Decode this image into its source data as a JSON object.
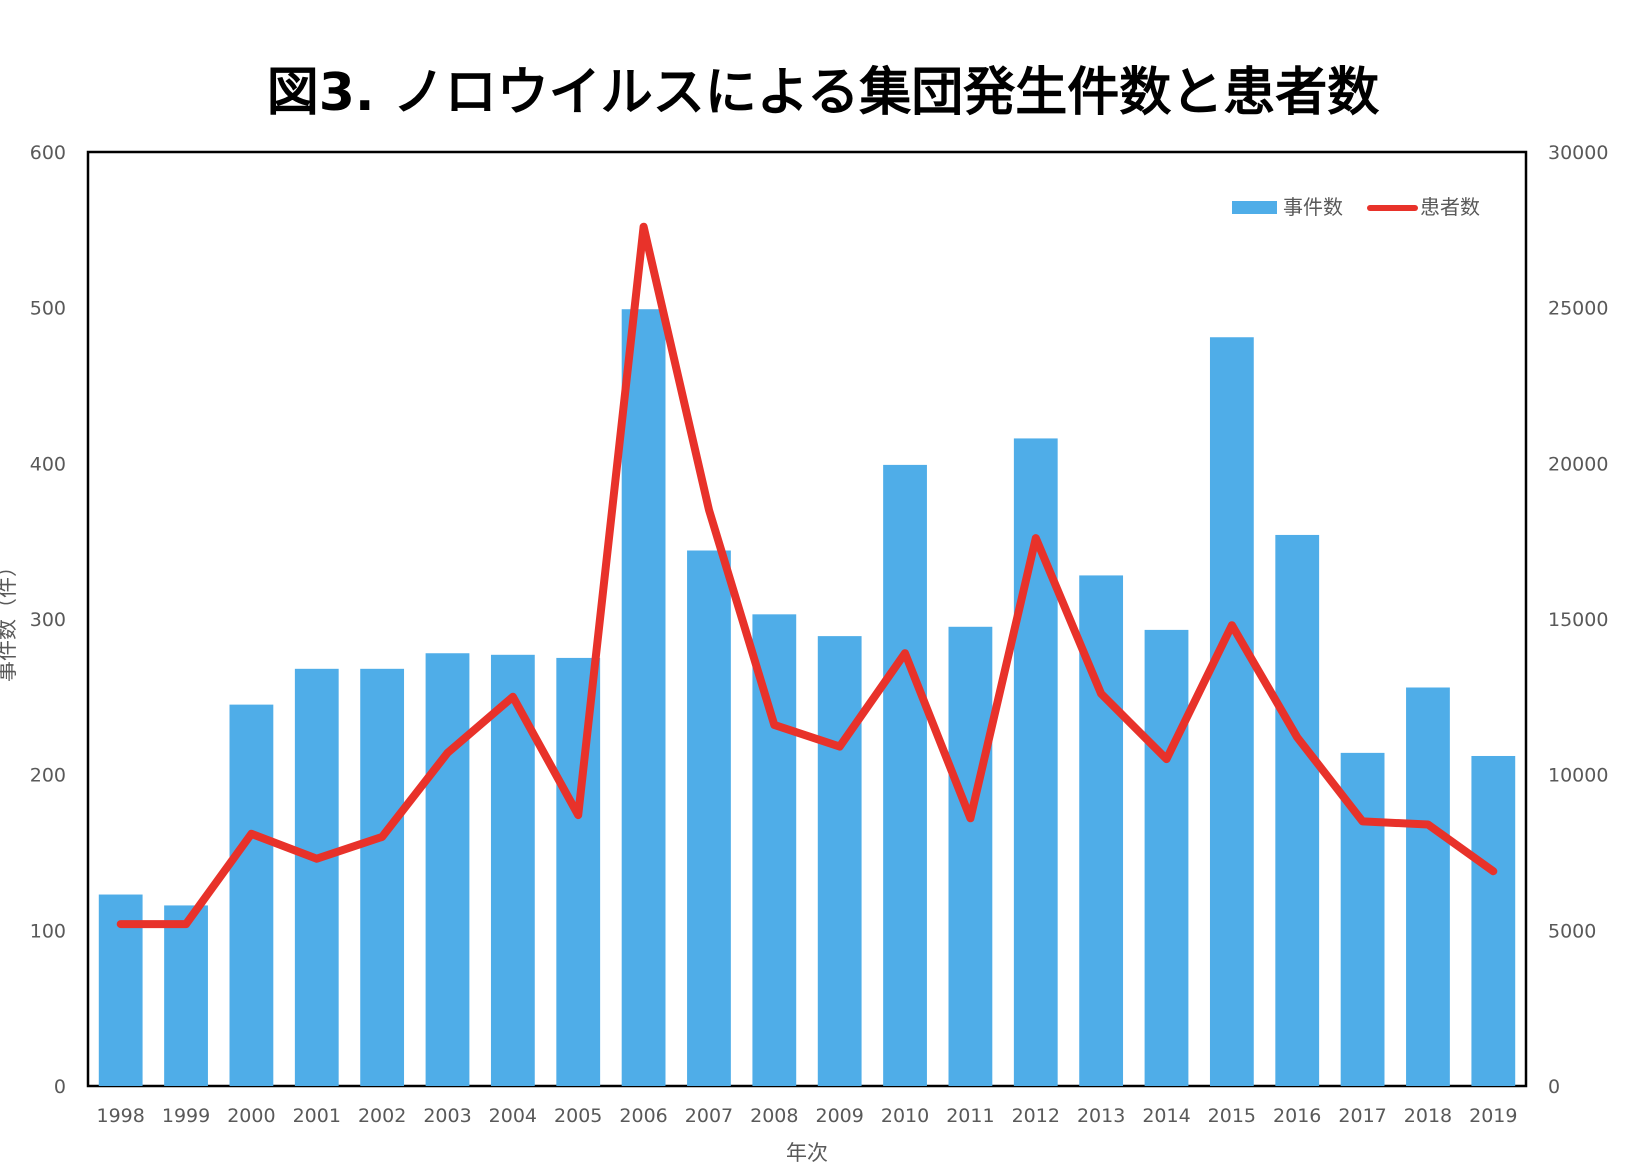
{
  "chart_data": {
    "type": "bar",
    "title": "図3. ノロウイルスによる集団発生件数と患者数",
    "xlabel": "年次",
    "ylabel": "事件数（件）",
    "ylabel_right": "",
    "categories": [
      "1998",
      "1999",
      "2000",
      "2001",
      "2002",
      "2003",
      "2004",
      "2005",
      "2006",
      "2007",
      "2008",
      "2009",
      "2010",
      "2011",
      "2012",
      "2013",
      "2014",
      "2015",
      "2016",
      "2017",
      "2018",
      "2019"
    ],
    "ylim": [
      0,
      600
    ],
    "y_ticks": [
      "0",
      "100",
      "200",
      "300",
      "400",
      "500",
      "600"
    ],
    "ylim_right": [
      0,
      30000
    ],
    "y_ticks_right": [
      "0",
      "5000",
      "10000",
      "15000",
      "20000",
      "25000",
      "30000"
    ],
    "grid": false,
    "legend_position": "top-right",
    "series": [
      {
        "name": "事件数",
        "type": "bar",
        "axis": "left",
        "color": "#4fade8",
        "values": [
          123,
          116,
          245,
          268,
          268,
          278,
          277,
          275,
          499,
          344,
          303,
          289,
          399,
          295,
          416,
          328,
          293,
          481,
          354,
          214,
          256,
          212
        ]
      },
      {
        "name": "患者数",
        "type": "line",
        "axis": "right",
        "color": "#e8322a",
        "values": [
          5200,
          5200,
          8100,
          7300,
          8000,
          10700,
          12500,
          8700,
          27600,
          18500,
          11600,
          10900,
          13900,
          8600,
          17600,
          12600,
          10500,
          14800,
          11200,
          8500,
          8400,
          6900
        ]
      }
    ]
  }
}
